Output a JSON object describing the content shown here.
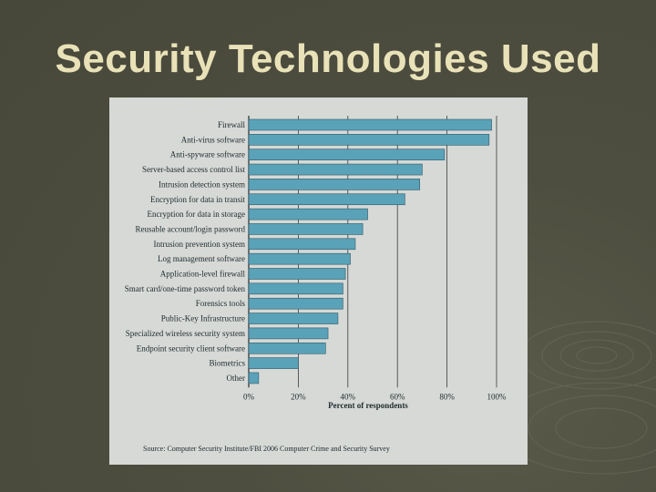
{
  "slide": {
    "title": "Security Technologies Used"
  },
  "colors": {
    "bar_fill": "#5aa2b8",
    "bar_stroke": "#2f5a6a",
    "panel_bg": "#d6d9d6",
    "title": "#e9e2b8"
  },
  "chart_data": {
    "type": "bar",
    "orientation": "horizontal",
    "categories": [
      "Firewall",
      "Anti-virus software",
      "Anti-spyware software",
      "Server-based access control list",
      "Intrusion detection system",
      "Encryption for data in transit",
      "Encryption for data in storage",
      "Reusable account/login password",
      "Intrusion prevention system",
      "Log management software",
      "Application-level firewall",
      "Smart card/one-time password token",
      "Forensics tools",
      "Public-Key Infrastructure",
      "Specialized wireless security system",
      "Endpoint security client software",
      "Biometrics",
      "Other"
    ],
    "values": [
      98,
      97,
      79,
      70,
      69,
      63,
      48,
      46,
      43,
      41,
      39,
      38,
      38,
      36,
      32,
      31,
      20,
      4
    ],
    "x_ticks": [
      "0%",
      "20%",
      "40%",
      "60%",
      "80%",
      "100%"
    ],
    "xlim": [
      0,
      100
    ],
    "xlabel": "Percent of respondents",
    "ylabel": "",
    "grid": true,
    "source": "Source: Computer Security Institute/FBI 2006 Computer Crime and Security Survey"
  }
}
